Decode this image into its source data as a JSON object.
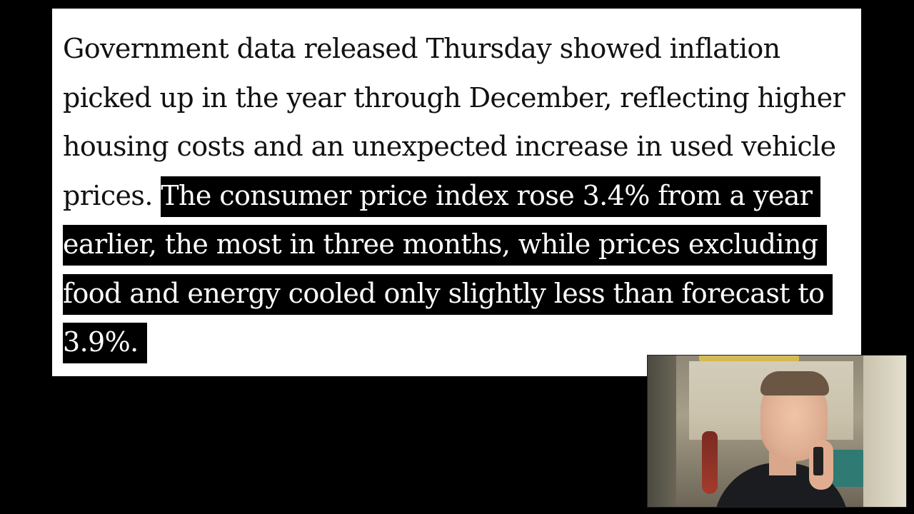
{
  "article": {
    "plain_text": "Government data released Thursday showed inflation picked up in the year through December, reflecting higher housing costs and an unexpected increase in used vehicle prices. ",
    "highlighted_text": "The consumer price index rose 3.4% from a year earlier, the most in three months, while prices excluding food and energy cooled only slightly less than forecast to 3.9%."
  },
  "colors": {
    "background": "#000000",
    "card": "#ffffff",
    "text": "#111111",
    "highlight_bg": "#000000",
    "highlight_text": "#ffffff"
  },
  "webcam": {
    "subject": "presenter-webcam-overlay"
  }
}
